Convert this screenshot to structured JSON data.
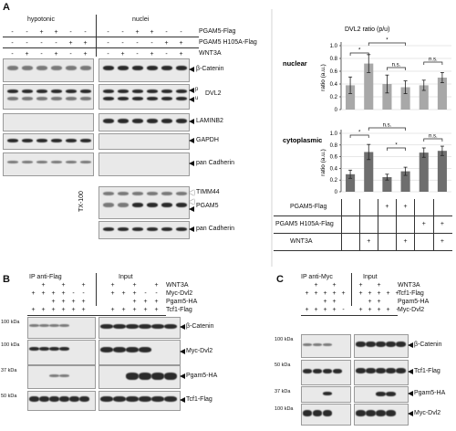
{
  "panels": {
    "a": "A",
    "b": "B",
    "c": "C"
  },
  "panelA": {
    "col_hypotonic": "hypotonic",
    "col_nuclei": "nuclei",
    "cond_pgam5": "PGAM5-Flag",
    "cond_h105a": "PGAM5 H105A-Flag",
    "cond_wnt3a": "WNT3A",
    "blot_labels": [
      "β-Catenin",
      "DVL2",
      "LAMINB2",
      "GAPDH",
      "pan Cadherin",
      "TIMM44",
      "PGAM5",
      "pan Cadherin"
    ],
    "dvl_p": "p",
    "dvl_u": "u",
    "tx100": "TX-100"
  },
  "chart_data": [
    {
      "type": "bar",
      "title": "DVL2 ratio (p/u)",
      "subtitle": "nuclear",
      "ylabel": "ratio (a.u.)",
      "ylim": [
        0,
        1.0
      ],
      "yticks": [
        0,
        0.2,
        0.4,
        0.6,
        0.8,
        1.0
      ],
      "values": [
        0.38,
        0.72,
        0.4,
        0.35,
        0.38,
        0.5
      ],
      "errors": [
        0.13,
        0.14,
        0.14,
        0.1,
        0.08,
        0.08
      ],
      "significance": [
        "*",
        "*",
        "n.s.",
        "n.s."
      ]
    },
    {
      "type": "bar",
      "subtitle": "cytoplasmic",
      "ylabel": "ratio (a.u.)",
      "ylim": [
        0,
        1.0
      ],
      "yticks": [
        0,
        0.2,
        0.4,
        0.6,
        0.8,
        1.0
      ],
      "values": [
        0.3,
        0.68,
        0.25,
        0.35,
        0.67,
        0.7
      ],
      "errors": [
        0.07,
        0.13,
        0.05,
        0.07,
        0.08,
        0.08
      ],
      "significance": [
        "*",
        "n.s.",
        "*",
        "n.s."
      ],
      "conditions_table": {
        "rows": [
          "PGAM5-Flag",
          "PGAM5 H105A-Flag",
          "WNT3A"
        ],
        "values": [
          [
            "-",
            "-",
            "+",
            "+",
            "-",
            "-"
          ],
          [
            "-",
            "-",
            "-",
            "-",
            "+",
            "+"
          ],
          [
            "-",
            "+",
            "-",
            "+",
            "-",
            "+"
          ]
        ]
      }
    }
  ],
  "panelB": {
    "ip": "IP anti-Flag",
    "input": "Input",
    "rows": [
      "WNT3A",
      "Myc-Dvl2",
      "Pgam5-HA",
      "Tcf1-Flag"
    ],
    "mw": [
      "100 kDa",
      "100 kDa",
      "37 kDa",
      "50 kDa"
    ],
    "blot_labels": [
      "β-Catenin",
      "Myc-Dvl2",
      "Pgam5-HA",
      "Tcf1-Flag"
    ]
  },
  "panelC": {
    "ip": "IP anti-Myc",
    "input": "Input",
    "rows": [
      "WNT3A",
      "Tcf1-Flag",
      "Pgam5-HA",
      "Myc-Dvl2"
    ],
    "mw": [
      "100 kDa",
      "50 kDa",
      "37 kDa",
      "100 kDa"
    ],
    "blot_labels": [
      "β-Catenin",
      "Tcf1-Flag",
      "Pgam5-HA",
      "Myc-Dvl2"
    ]
  }
}
